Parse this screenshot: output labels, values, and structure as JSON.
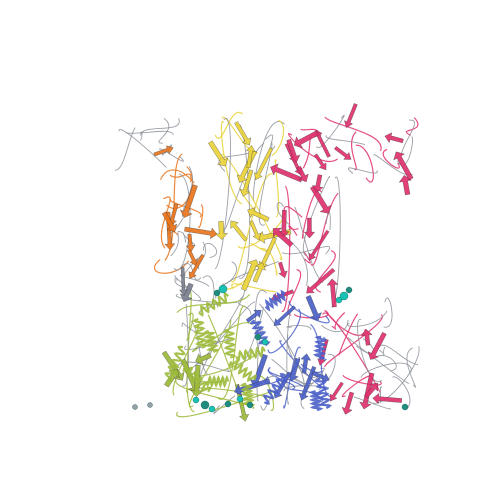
{
  "image": {
    "kind": "protein-ribbon-rendering",
    "background": "#ffffff"
  },
  "palette": {
    "chain_gray": "#7a7f8f",
    "chain_orange": "#e8741c",
    "chain_yellow": "#e9d23a",
    "chain_pink": "#e0306e",
    "chain_green": "#9cba3a",
    "chain_blue": "#4a5fc8",
    "ligand_cyan": "#19c2b4",
    "ligand_teal": "#1e8c7e",
    "ligand_gray": "#9aa0a8"
  }
}
